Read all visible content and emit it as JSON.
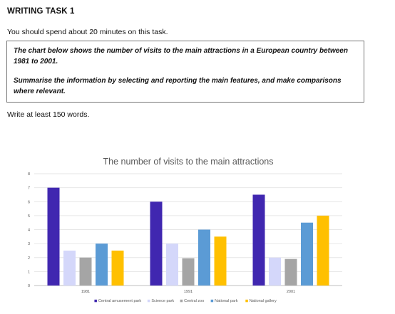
{
  "heading": "WRITING TASK 1",
  "instruction": "You should spend about 20 minutes on this task.",
  "task": {
    "line1": "The chart below shows the number of visits to the main attractions in a European country between 1981 to 2001.",
    "line2": "Summarise the information by selecting and reporting the main features, and make comparisons where relevant."
  },
  "word_count": "Write at least 150 words.",
  "chart_data": {
    "type": "bar",
    "title": "The number of visits to the main attractions",
    "xlabel": "",
    "ylabel": "",
    "categories": [
      "1981",
      "1991",
      "2001"
    ],
    "ylim": [
      0,
      8
    ],
    "yticks": [
      0,
      1,
      2,
      3,
      4,
      5,
      6,
      7,
      8
    ],
    "grid": true,
    "legend_position": "bottom",
    "series": [
      {
        "name": "Central amusement park",
        "color": "#4027b0",
        "values": [
          7,
          6,
          6.5
        ]
      },
      {
        "name": "Science park",
        "color": "#d4d7fa",
        "values": [
          2.5,
          3,
          2
        ]
      },
      {
        "name": "Central zoo",
        "color": "#a5a5a5",
        "values": [
          2,
          1.95,
          1.9
        ]
      },
      {
        "name": "National park",
        "color": "#5b9bd5",
        "values": [
          3,
          4,
          4.5
        ]
      },
      {
        "name": "National gallery",
        "color": "#ffc000",
        "values": [
          2.5,
          3.5,
          5
        ]
      }
    ]
  }
}
